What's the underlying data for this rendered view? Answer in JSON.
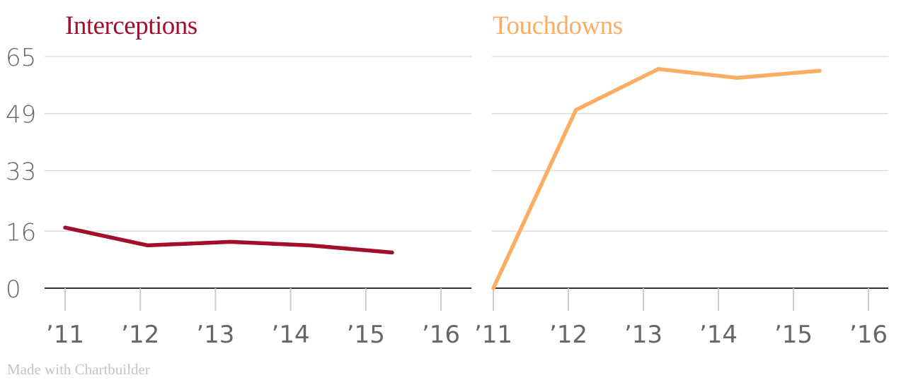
{
  "colors": {
    "interceptions": "#a10f2b",
    "touchdowns": "#fbad63",
    "grid": "#dddddd",
    "tick_text": "#666666",
    "credit": "#c4c4c4"
  },
  "credit": "Made with Chartbuilder",
  "chart_data": [
    {
      "type": "line",
      "title": "Interceptions",
      "x_axis": {
        "type": "year",
        "range": [
          2011,
          2016
        ],
        "tick_values": [
          2011,
          2012,
          2013,
          2014,
          2015,
          2016
        ],
        "tick_labels": [
          "’11",
          "’12",
          "’13",
          "’14",
          "’15",
          "’16"
        ]
      },
      "y_axis": {
        "range": [
          0,
          65
        ],
        "tick_values": [
          0,
          16,
          33,
          49,
          65
        ],
        "tick_labels": [
          "0",
          "16",
          "33",
          "49",
          "65"
        ]
      },
      "grid": true,
      "series": [
        {
          "color": "#a10f2b",
          "x": [
            2011,
            2012.1,
            2013.2,
            2014.25,
            2015.35
          ],
          "y": [
            17,
            12,
            13,
            12,
            10
          ]
        }
      ]
    },
    {
      "type": "line",
      "title": "Touchdowns",
      "x_axis": {
        "type": "year",
        "range": [
          2011,
          2016
        ],
        "tick_values": [
          2011,
          2012,
          2013,
          2014,
          2015,
          2016
        ],
        "tick_labels": [
          "’11",
          "’12",
          "’13",
          "’14",
          "’15",
          "’16"
        ]
      },
      "y_axis": {
        "range": [
          0,
          65
        ],
        "tick_values": [
          0,
          16,
          33,
          49,
          65
        ],
        "tick_labels": [
          "0",
          "16",
          "33",
          "49",
          "65"
        ]
      },
      "grid": true,
      "series": [
        {
          "color": "#fbad63",
          "x": [
            2011,
            2012.1,
            2013.2,
            2014.25,
            2015.35
          ],
          "y": [
            0,
            50,
            61.5,
            59,
            61
          ]
        }
      ]
    }
  ]
}
